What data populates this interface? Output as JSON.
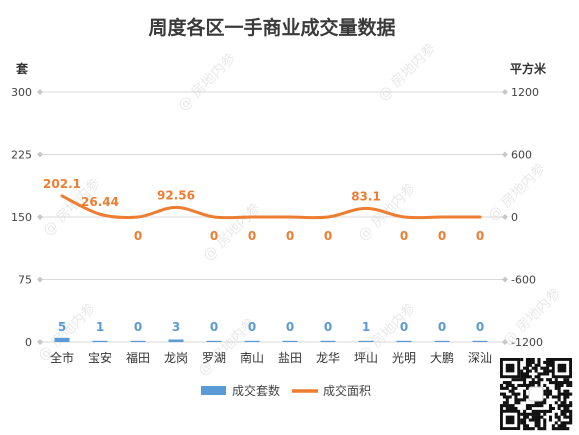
{
  "chart_data": {
    "type": "bar",
    "title": "周度各区一手商业成交量数据",
    "y_left_label": "套",
    "y_right_label": "平方米",
    "y_left_ticks": [
      "300",
      "225",
      "150",
      "75",
      "0"
    ],
    "y_right_ticks": [
      "1200",
      "600",
      "0",
      "-600",
      "-1200"
    ],
    "ylim_left": [
      0,
      300
    ],
    "ylim_right": [
      -1200,
      1200
    ],
    "grid": true,
    "legend_position": "bottom",
    "categories": [
      "全市",
      "宝安",
      "福田",
      "龙岗",
      "罗湖",
      "南山",
      "盐田",
      "龙华",
      "坪山",
      "光明",
      "大鹏",
      "深汕"
    ],
    "series": [
      {
        "name": "成交套数",
        "type": "bar",
        "axis": "left",
        "color": "#5b9bd5",
        "values": [
          5,
          1,
          0,
          3,
          0,
          0,
          0,
          0,
          1,
          0,
          0,
          0
        ],
        "labels": [
          "5",
          "1",
          "0",
          "3",
          "0",
          "0",
          "0",
          "0",
          "1",
          "0",
          "0",
          "0"
        ]
      },
      {
        "name": "成交面积",
        "type": "line",
        "axis": "right",
        "color": "#ed7d31",
        "values": [
          202.1,
          26.44,
          0,
          92.56,
          0,
          0,
          0,
          0,
          83.1,
          0,
          0,
          0
        ],
        "labels": [
          "202.1",
          "26.44",
          "0",
          "92.56",
          "0",
          "0",
          "0",
          "0",
          "83.1",
          "0",
          "0",
          "0"
        ]
      }
    ]
  },
  "watermark": {
    "text": "房地内参",
    "color": "#cfcfcf"
  },
  "qr_code": {
    "icon": "qr-code-icon"
  }
}
